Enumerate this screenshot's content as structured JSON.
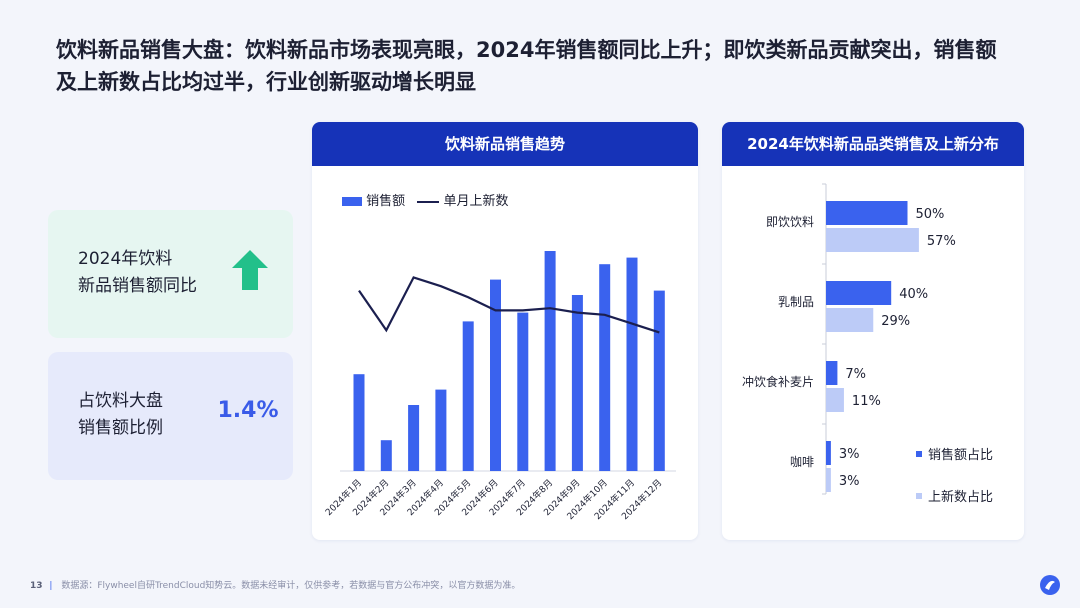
{
  "headline": {
    "line1": "饮料新品销售大盘：饮料新品市场表现亮眼，2024年销售额同比上升；即饮类新品贡献突出，销售额",
    "line2": "及上新数占比均过半，行业创新驱动增长明显"
  },
  "cards": {
    "growth": {
      "label_line1": "2024年饮料",
      "label_line2": "新品销售额同比",
      "trend": "up",
      "color": "#22c08a"
    },
    "share": {
      "label_line1": "占饮料大盘",
      "label_line2": "销售额比例",
      "value": "1.4%"
    }
  },
  "trend_panel": {
    "title": "饮料新品销售趋势",
    "legend_bar": "销售额",
    "legend_line": "单月上新数"
  },
  "dist_panel": {
    "title": "2024年饮料新品品类销售及上新分布",
    "legend_sales": "销售额占比",
    "legend_launch": "上新数占比"
  },
  "footer": {
    "page_number": "13",
    "source": "数据源：Flywheel自研TrendCloud知势云。数据未经审计，仅供参考，若数据与官方公布冲突，以官方数据为准。"
  },
  "colors": {
    "bar": "#3a62ee",
    "line": "#1b1f4f",
    "sales_bar": "#3a62ee",
    "launch_bar": "#bccbf7",
    "header": "#1633b8"
  },
  "chart_data": [
    {
      "type": "bar",
      "title": "饮料新品销售趋势",
      "categories": [
        "2024年1月",
        "2024年2月",
        "2024年3月",
        "2024年4月",
        "2024年5月",
        "2024年6月",
        "2024年7月",
        "2024年8月",
        "2024年9月",
        "2024年10月",
        "2024年11月",
        "2024年12月"
      ],
      "series": [
        {
          "name": "销售额",
          "kind": "bar",
          "values": [
            44,
            14,
            30,
            37,
            68,
            87,
            72,
            100,
            80,
            94,
            97,
            82
          ]
        },
        {
          "name": "单月上新数",
          "kind": "line",
          "values": [
            82,
            64,
            88,
            84,
            79,
            73,
            73,
            74,
            72,
            71,
            67,
            63
          ]
        }
      ],
      "ylim": [
        0,
        110
      ],
      "grid": false,
      "legend": "top-left"
    },
    {
      "type": "bar",
      "title": "2024年饮料新品品类销售及上新分布",
      "orientation": "horizontal",
      "categories": [
        "即饮饮料",
        "乳制品",
        "冲饮食补麦片",
        "咖啡"
      ],
      "series": [
        {
          "name": "销售额占比",
          "values": [
            50,
            40,
            7,
            3
          ]
        },
        {
          "name": "上新数占比",
          "values": [
            57,
            29,
            11,
            3
          ]
        }
      ],
      "value_labels": {
        "sales": [
          "50%",
          "40%",
          "7%",
          "3%"
        ],
        "launch": [
          "57%",
          "29%",
          "11%",
          "3%"
        ]
      },
      "xlim": [
        0,
        100
      ],
      "legend": "bottom-right"
    }
  ]
}
